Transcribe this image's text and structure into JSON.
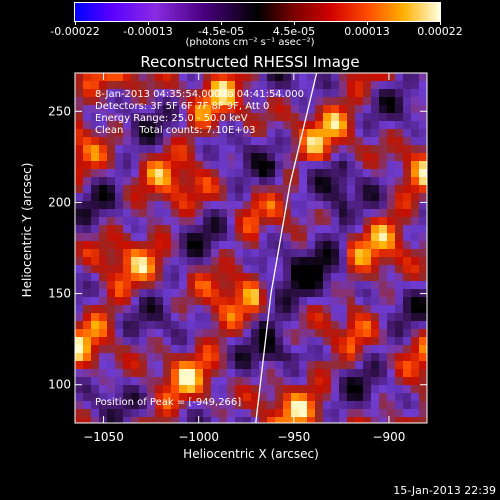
{
  "colorbar": {
    "ticks": [
      "-0.00022",
      "-0.00013",
      "-4.5e-05",
      "4.5e-05",
      "0.00013",
      "0.00022"
    ],
    "units": "(photons cm⁻² s⁻¹ asec⁻²)",
    "range": [
      -0.00022,
      0.00022
    ]
  },
  "chart_data": {
    "type": "heatmap",
    "title": "Reconstructed RHESSI Image",
    "xlabel": "Heliocentric X (arcsec)",
    "ylabel": "Heliocentric Y (arcsec)",
    "xlim": [
      -1065,
      -880
    ],
    "ylim": [
      79,
      271
    ],
    "x_ticks": [
      -1050,
      -1000,
      -950,
      -900
    ],
    "y_ticks": [
      100,
      150,
      200,
      250
    ],
    "x_tick_labels": [
      "−1050",
      "−1000",
      "−950",
      "−900"
    ],
    "y_tick_labels": [
      "100",
      "150",
      "200",
      "250"
    ],
    "limb_curve": [
      [
        -970,
        79
      ],
      [
        -962,
        150
      ],
      [
        -952,
        210
      ],
      [
        -938,
        271
      ]
    ],
    "peak_position": [
      -949,
      266
    ],
    "colormap": "blue-purple-black-red-yellow-white"
  },
  "info": {
    "time_range": "8-Jan-2013 04:35:54.000 to 04:41:54.000",
    "detectors": "Detectors: 3F 5F 6F 7F 8F 9F, Att 0",
    "energy": "Energy Range: 25.0 - 50.0 keV",
    "clean": "Clean     Total counts: 7.10E+03",
    "peak": "Position of Peak = [-949,266]"
  },
  "timestamp": "15-Jan-2013 22:39"
}
